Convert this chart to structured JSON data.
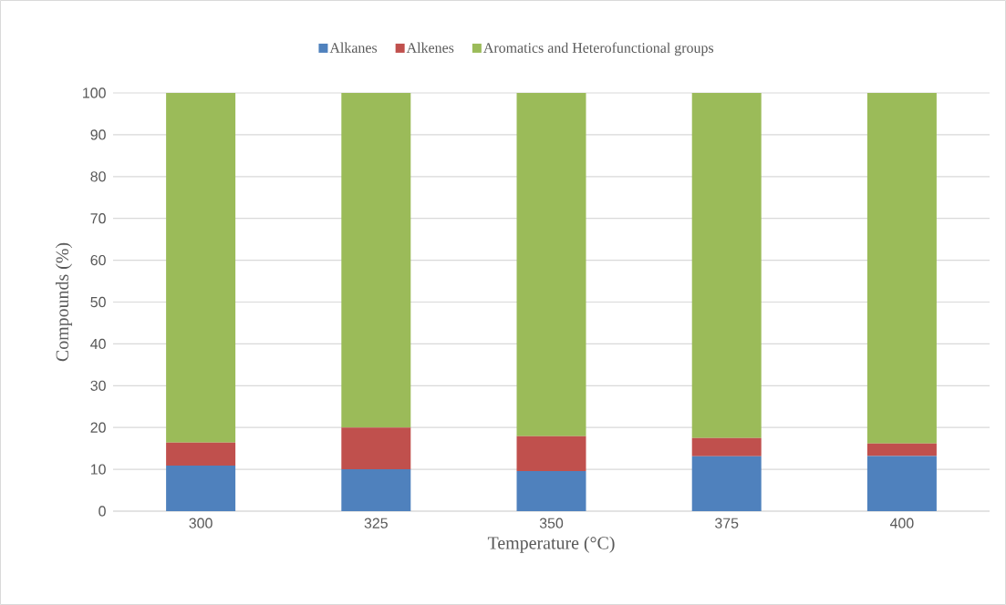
{
  "chart_data": {
    "type": "bar",
    "stacked": true,
    "xlabel": "Temperature (°C)",
    "ylabel": "Compounds (%)",
    "categories": [
      "300",
      "325",
      "350",
      "375",
      "400"
    ],
    "series": [
      {
        "name": "Alkanes",
        "color": "#4f81bd",
        "values": [
          10.9,
          10.0,
          9.6,
          13.1,
          13.2
        ]
      },
      {
        "name": "Alkenes",
        "color": "#c0504d",
        "values": [
          5.5,
          10.0,
          8.3,
          4.4,
          3.0
        ]
      },
      {
        "name": "Aromatics and Heterofunctional groups",
        "color": "#9bbb59",
        "values": [
          83.6,
          80.0,
          82.1,
          82.5,
          83.8
        ]
      }
    ],
    "ylim": [
      0,
      100
    ],
    "yticks": [
      0,
      10,
      20,
      30,
      40,
      50,
      60,
      70,
      80,
      90,
      100
    ],
    "grid": "y",
    "legend": "top"
  }
}
